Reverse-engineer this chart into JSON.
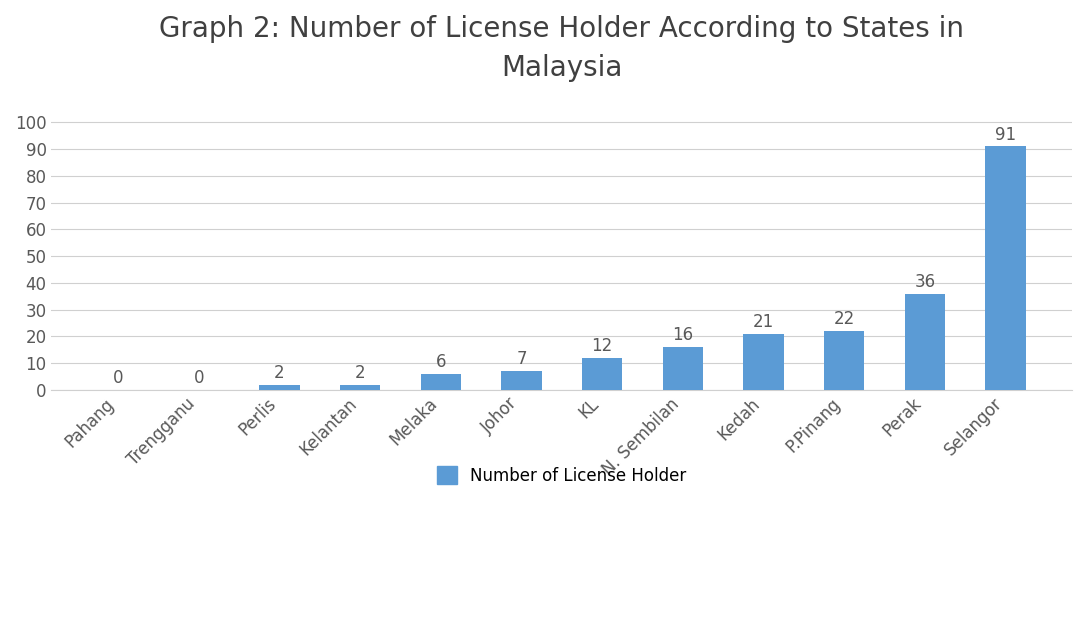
{
  "title": "Graph 2: Number of License Holder According to States in\nMalaysia",
  "categories": [
    "Pahang",
    "Trengganu",
    "Perlis",
    "Kelantan",
    "Melaka",
    "Johor",
    "KL",
    "N. Sembilan",
    "Kedah",
    "P.Pinang",
    "Perak",
    "Selangor"
  ],
  "values": [
    0,
    0,
    2,
    2,
    6,
    7,
    12,
    16,
    21,
    22,
    36,
    91
  ],
  "bar_color": "#5B9BD5",
  "title_fontsize": 20,
  "label_fontsize": 12,
  "tick_fontsize": 12,
  "annotation_fontsize": 12,
  "legend_label": "Number of License Holder",
  "ylim": [
    0,
    108
  ],
  "yticks": [
    0,
    10,
    20,
    30,
    40,
    50,
    60,
    70,
    80,
    90,
    100
  ],
  "background_color": "#ffffff",
  "grid_color": "#d0d0d0",
  "title_color": "#404040",
  "tick_color": "#595959",
  "bar_width": 0.5
}
